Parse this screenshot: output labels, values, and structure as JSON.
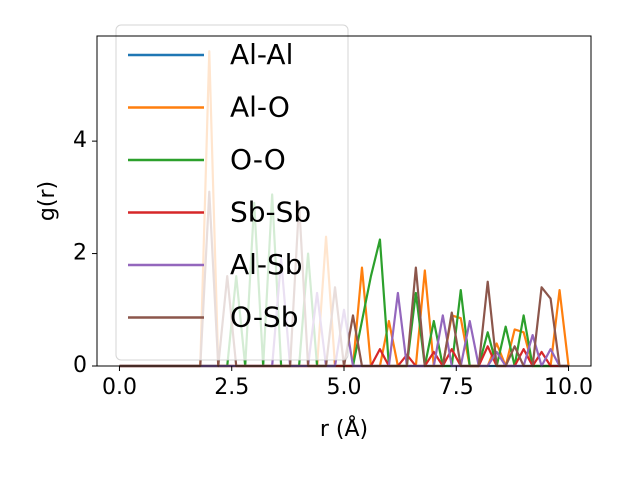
{
  "chart_data": {
    "type": "line",
    "xlabel": "r (Å)",
    "ylabel": "g(r)",
    "x": [
      0.0,
      0.2,
      0.4,
      0.6,
      0.8,
      1.0,
      1.2,
      1.4,
      1.6,
      1.8,
      2.0,
      2.2,
      2.4,
      2.6,
      2.8,
      3.0,
      3.2,
      3.4,
      3.6,
      3.8,
      4.0,
      4.2,
      4.4,
      4.6,
      4.8,
      5.0,
      5.2,
      5.4,
      5.6,
      5.8,
      6.0,
      6.2,
      6.4,
      6.6,
      6.8,
      7.0,
      7.2,
      7.4,
      7.6,
      7.8,
      8.0,
      8.2,
      8.4,
      8.6,
      8.8,
      9.0,
      9.2,
      9.4,
      9.6,
      9.8,
      10.0
    ],
    "series": [
      {
        "name": "Al-Al",
        "color": "#1f77b4",
        "values": [
          0,
          0,
          0,
          0,
          0,
          0,
          0,
          0,
          0,
          0,
          0,
          0,
          0,
          0,
          0,
          0,
          0,
          0,
          0,
          0,
          0,
          0,
          0,
          0,
          0,
          0,
          0,
          0,
          0,
          0,
          0,
          0,
          0,
          0,
          0,
          0,
          0,
          0,
          0,
          0,
          0,
          0,
          0,
          0,
          0,
          0,
          0,
          0,
          0,
          0,
          0
        ]
      },
      {
        "name": "Al-O",
        "color": "#ff7f0e",
        "values": [
          0,
          0,
          0,
          0,
          0,
          0,
          0,
          0,
          0,
          0,
          5.6,
          0,
          0,
          0,
          0,
          0,
          0,
          0,
          0,
          0,
          0,
          0,
          0,
          2.3,
          0,
          0,
          0,
          1.75,
          0,
          0,
          0.8,
          0,
          0,
          0,
          1.7,
          0,
          0,
          0.9,
          0.85,
          0,
          0,
          0,
          0.4,
          0,
          0.65,
          0.6,
          0,
          0,
          0,
          1.35,
          0
        ]
      },
      {
        "name": "O-O",
        "color": "#2ca02c",
        "values": [
          0,
          0,
          0,
          0,
          0,
          0,
          0,
          0,
          0,
          0,
          0,
          0,
          0,
          1.6,
          0,
          2.9,
          0,
          3.05,
          0,
          0,
          0,
          2.0,
          0,
          0,
          0,
          0,
          0,
          0.8,
          1.6,
          2.25,
          0,
          0,
          0,
          1.3,
          0,
          0.8,
          0,
          0,
          1.35,
          0,
          0,
          0.6,
          0,
          0.7,
          0,
          0.9,
          0,
          0,
          0,
          0,
          0
        ]
      },
      {
        "name": "Sb-Sb",
        "color": "#d62728",
        "values": [
          0,
          0,
          0,
          0,
          0,
          0,
          0,
          0,
          0,
          0,
          0,
          0,
          0,
          0,
          0,
          0,
          0,
          0,
          0,
          0,
          0,
          0,
          0,
          0,
          0,
          0,
          0,
          0,
          0,
          0.3,
          0,
          0,
          0.2,
          0,
          0,
          0.25,
          0,
          0.3,
          0,
          0,
          0,
          0.35,
          0,
          0,
          0,
          0.3,
          0,
          0.25,
          0,
          0,
          0
        ]
      },
      {
        "name": "Al-Sb",
        "color": "#9467bd",
        "values": [
          0,
          0,
          0,
          0,
          0,
          0,
          0,
          0,
          0,
          0,
          0,
          0,
          0,
          0,
          0,
          0,
          0,
          0,
          1.9,
          0,
          0,
          0,
          1.3,
          0,
          0,
          1.0,
          0,
          0,
          0,
          0,
          0,
          1.3,
          0,
          0,
          0,
          0,
          0.9,
          0,
          0,
          0.8,
          0,
          0,
          0.25,
          0,
          0,
          0,
          0.55,
          0,
          0.3,
          0,
          0
        ]
      },
      {
        "name": "O-Sb",
        "color": "#8c564b",
        "values": [
          0,
          0,
          0,
          0,
          0,
          0,
          0,
          0,
          0,
          0,
          3.1,
          0,
          1.6,
          0,
          0,
          0,
          0,
          0,
          0,
          0,
          2.9,
          0,
          0,
          0,
          1.4,
          0,
          0.9,
          0,
          0,
          0,
          0,
          0,
          0,
          1.75,
          0,
          0,
          0,
          0.95,
          0,
          0,
          0,
          1.5,
          0,
          0,
          0.35,
          0,
          0,
          1.4,
          1.2,
          0,
          0
        ]
      }
    ],
    "xlim": [
      -0.5,
      10.5
    ],
    "xticks": [
      {
        "value": 0,
        "label": "0.0"
      },
      2.5,
      {
        "value": 5,
        "label": "5.0"
      },
      7.5,
      {
        "value": 10,
        "label": "10.0"
      }
    ],
    "ylim": [
      0,
      5.87
    ],
    "yticks": [
      0,
      2,
      4
    ],
    "legend": "upper left"
  }
}
